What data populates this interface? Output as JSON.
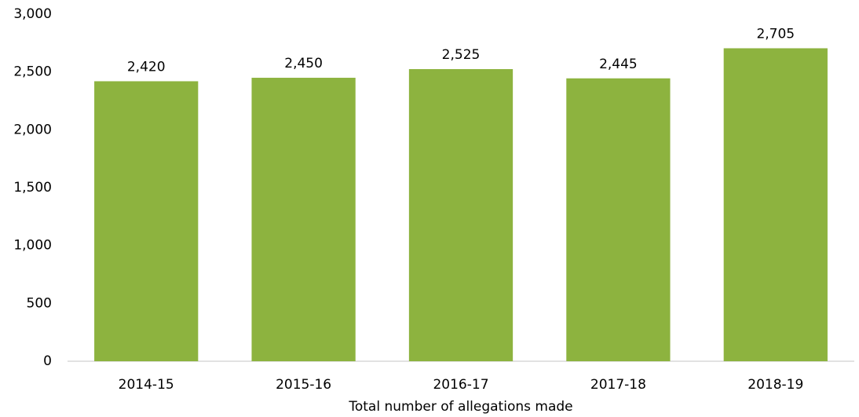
{
  "chart_data": {
    "type": "bar",
    "x_label": "Total number of allegations made",
    "categories": [
      "2014-15",
      "2015-16",
      "2016-17",
      "2017-18",
      "2018-19"
    ],
    "values": [
      2420,
      2450,
      2525,
      2445,
      2705
    ],
    "value_labels": [
      "2,420",
      "2,450",
      "2,525",
      "2,445",
      "2,705"
    ],
    "color": "#8db33f",
    "ylim": [
      0,
      3000
    ],
    "yticks": [
      0,
      500,
      {
        "value": 1000,
        "label": "1,000"
      },
      {
        "value": 1500,
        "label": "1,500"
      },
      {
        "value": 2000,
        "label": "2,000"
      },
      {
        "value": 2500,
        "label": "2,500"
      },
      {
        "value": 3000,
        "label": "3,000"
      }
    ],
    "grid": false
  }
}
